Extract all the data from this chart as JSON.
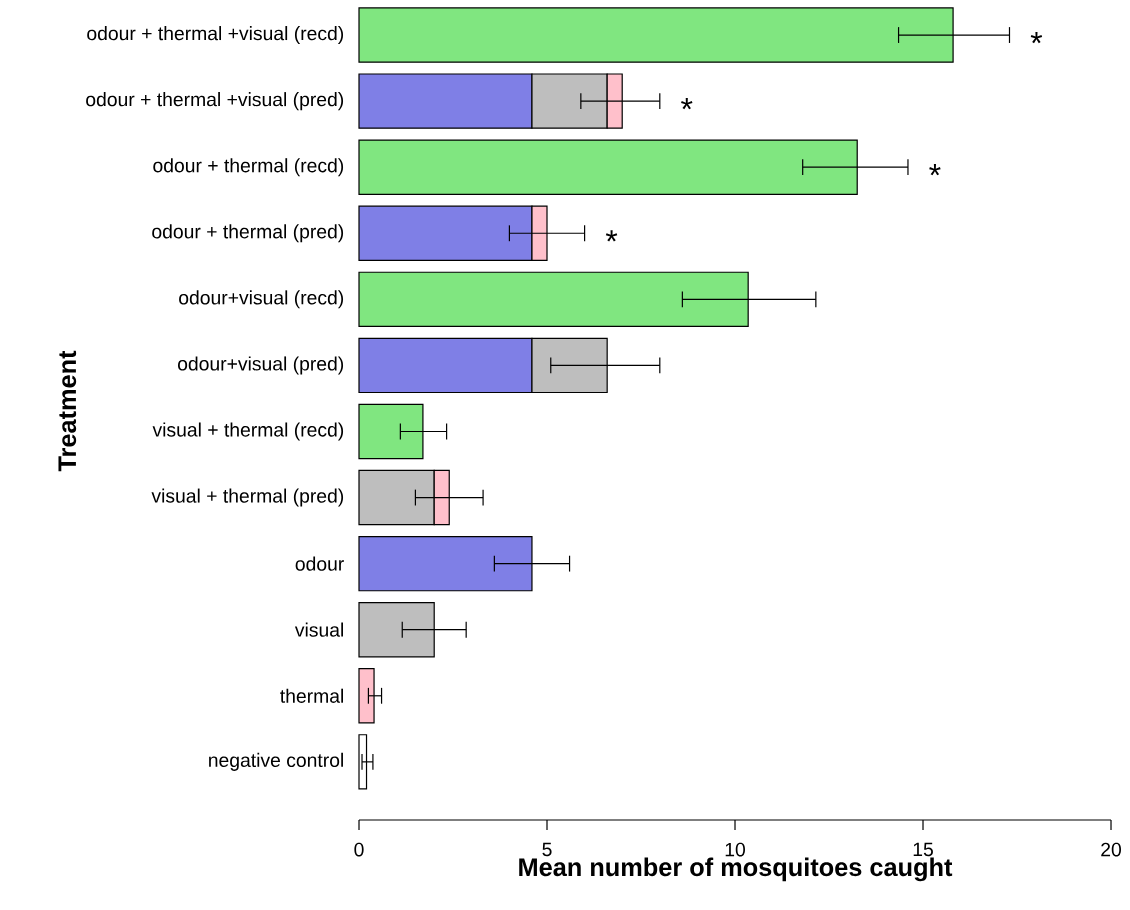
{
  "chart_data": {
    "type": "bar",
    "orientation": "horizontal",
    "stacked": true,
    "xlabel": "Mean number of mosquitoes caught",
    "ylabel": "Treatment",
    "categories": [
      "odour + thermal +visual (recd)",
      "odour + thermal +visual (pred)",
      "odour + thermal (recd)",
      "odour + thermal (pred)",
      "odour+visual (recd)",
      "odour+visual (pred)",
      "visual + thermal (recd)",
      "visual + thermal (pred)",
      "odour",
      "visual",
      "thermal",
      "negative control"
    ],
    "series": [
      {
        "color": "#7f7fe6",
        "values": [
          null,
          4.6,
          null,
          4.6,
          null,
          4.6,
          null,
          null,
          4.6,
          null,
          null,
          null
        ],
        "errors": [
          null,
          null,
          null,
          null,
          null,
          null,
          null,
          null,
          [
            3.6,
            5.6
          ],
          null,
          null,
          null
        ]
      },
      {
        "color": "#bebebe",
        "values": [
          null,
          2.0,
          null,
          null,
          null,
          2.0,
          null,
          2.0,
          null,
          2.0,
          null,
          null
        ],
        "errors": [
          null,
          null,
          null,
          null,
          null,
          [
            5.1,
            8.0
          ],
          null,
          null,
          null,
          [
            1.15,
            2.85
          ],
          null,
          null
        ]
      },
      {
        "color": "#ffc0cb",
        "values": [
          null,
          0.4,
          null,
          0.4,
          null,
          null,
          null,
          0.4,
          null,
          null,
          0.4,
          null
        ],
        "errors": [
          null,
          [
            5.9,
            8.0
          ],
          null,
          [
            4.0,
            6.0
          ],
          null,
          null,
          null,
          [
            1.5,
            3.3
          ],
          null,
          null,
          [
            0.25,
            0.6
          ],
          null
        ]
      },
      {
        "color": "#80e680",
        "values": [
          15.8,
          null,
          13.25,
          null,
          10.35,
          null,
          1.7,
          null,
          null,
          null,
          null,
          null
        ],
        "errors": [
          [
            14.35,
            17.3
          ],
          null,
          [
            11.8,
            14.6
          ],
          null,
          [
            8.6,
            12.15
          ],
          null,
          [
            1.1,
            2.33
          ],
          null,
          null,
          null,
          null,
          null
        ]
      },
      {
        "color": "#ffffff",
        "values": [
          null,
          null,
          null,
          null,
          null,
          null,
          null,
          null,
          null,
          null,
          null,
          0.2
        ],
        "errors": [
          null,
          null,
          null,
          null,
          null,
          null,
          null,
          null,
          null,
          null,
          null,
          [
            0.08,
            0.37
          ]
        ]
      }
    ],
    "xlim": [
      0,
      20
    ],
    "xticks": [
      0,
      5,
      10,
      15,
      20
    ],
    "annotations": [
      {
        "text": "*",
        "x": 17.3,
        "y": "odour + thermal +visual (recd)"
      },
      {
        "text": "*",
        "x": 8.0,
        "y": "odour + thermal +visual (pred)"
      },
      {
        "text": "*",
        "x": 14.6,
        "y": "odour + thermal (recd)"
      },
      {
        "text": "*",
        "x": 6.0,
        "y": "odour + thermal (pred)"
      }
    ]
  }
}
